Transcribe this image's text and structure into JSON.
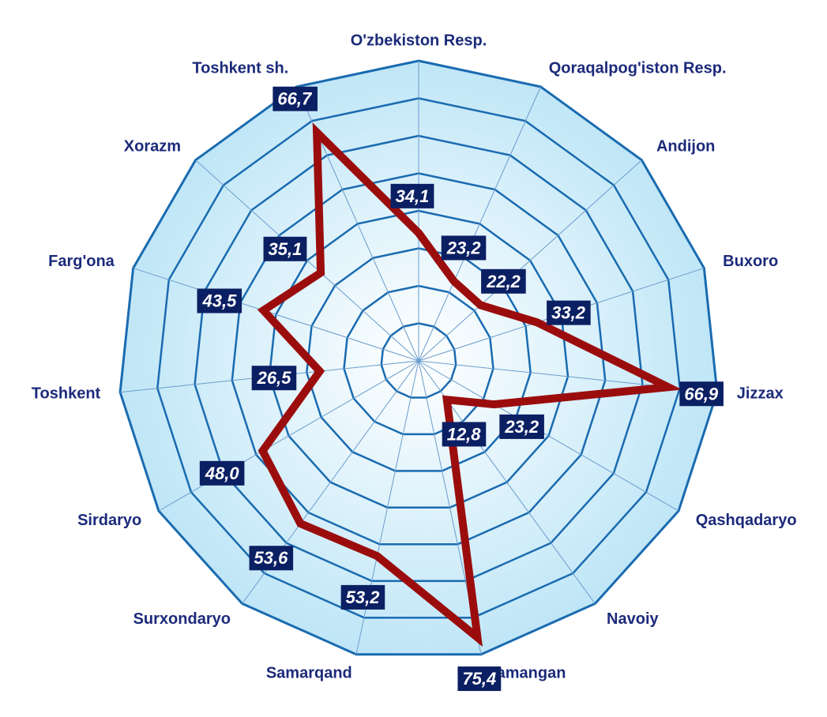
{
  "chart_data": {
    "type": "radar",
    "categories": [
      "O'zbekiston Resp.",
      "Qoraqalpog'iston Resp.",
      "Andijon",
      "Buxoro",
      "Jizzax",
      "Qashqadaryo",
      "Navoiy",
      "Namangan",
      "Samarqand",
      "Surxondaryo",
      "Sirdaryo",
      "Toshkent",
      "Farg'ona",
      "Xorazm",
      "Toshkent sh."
    ],
    "values": [
      34.1,
      23.2,
      22.2,
      33.2,
      66.9,
      23.2,
      12.8,
      75.4,
      53.2,
      53.6,
      48.0,
      26.5,
      43.5,
      35.1,
      66.7
    ],
    "value_labels": [
      "34,1",
      "23,2",
      "22,2",
      "33,2",
      "66,9",
      "23,2",
      "12,8",
      "75,4",
      "53,2",
      "53,6",
      "48,0",
      "26,5",
      "43,5",
      "35,1",
      "66,7"
    ],
    "color": "#9b0d0d",
    "grid_color": "#1a6bb0",
    "ylim": [
      0,
      80
    ],
    "yticks": [
      0,
      10,
      20,
      30,
      40,
      50,
      60,
      70,
      80
    ],
    "grid": true
  }
}
